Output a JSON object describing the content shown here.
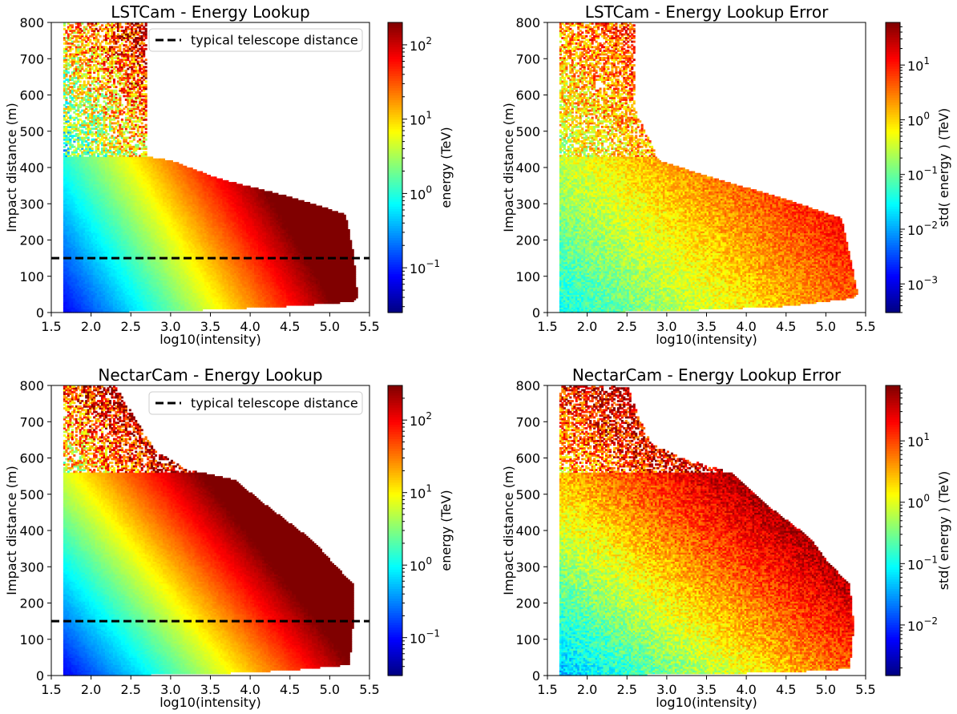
{
  "chart_data": [
    {
      "type": "heatmap",
      "title": "LSTCam - Energy Lookup",
      "xlabel": "log10(intensity)",
      "ylabel": "Impact distance (m)",
      "xlim": [
        1.5,
        5.5
      ],
      "ylim": [
        0,
        800
      ],
      "xticks": [
        "1.5",
        "2.0",
        "2.5",
        "3.0",
        "3.5",
        "4.0",
        "4.5",
        "5.0",
        "5.5"
      ],
      "yticks": [
        "0",
        "100",
        "200",
        "300",
        "400",
        "500",
        "600",
        "700",
        "800"
      ],
      "colorbar": {
        "label": "energy (TeV)",
        "scale": "log",
        "range": [
          0.025,
          200
        ],
        "ticks": [
          {
            "value": 0.1,
            "mantissa": "10",
            "exp": "−1"
          },
          {
            "value": 1,
            "mantissa": "10",
            "exp": "0"
          },
          {
            "value": 10,
            "mantissa": "10",
            "exp": "1"
          },
          {
            "value": 100,
            "mantissa": "10",
            "exp": "2"
          }
        ]
      },
      "reference_line": {
        "y": 150,
        "style": "dashed",
        "color": "#000000",
        "legend": "typical telescope distance"
      },
      "legend_location": "upper right",
      "model": {
        "kind": "energy",
        "base": -1.3,
        "slope_x": 1.0,
        "slope_d": 0.0027,
        "x_start": 1.65,
        "edge": [
          [
            1.65,
            800
          ],
          [
            2.7,
            800
          ],
          [
            2.7,
            430
          ],
          [
            3.0,
            420
          ],
          [
            3.6,
            370
          ],
          [
            4.4,
            325
          ],
          [
            4.8,
            300
          ],
          [
            5.2,
            270
          ],
          [
            5.3,
            160
          ],
          [
            5.35,
            40
          ],
          [
            5.3,
            30
          ],
          [
            4.5,
            18
          ],
          [
            3.5,
            8
          ],
          [
            2.0,
            0
          ],
          [
            1.65,
            0
          ]
        ],
        "low_stat_above": 430,
        "low_stat_mult": 0.12
      }
    },
    {
      "type": "heatmap",
      "title": "LSTCam - Energy Lookup Error",
      "xlabel": "log10(intensity)",
      "ylabel": "Impact distance (m)",
      "xlim": [
        1.5,
        5.5
      ],
      "ylim": [
        0,
        800
      ],
      "xticks": [
        "1.5",
        "2.0",
        "2.5",
        "3.0",
        "3.5",
        "4.0",
        "4.5",
        "5.0",
        "5.5"
      ],
      "yticks": [
        "0",
        "100",
        "200",
        "300",
        "400",
        "500",
        "600",
        "700",
        "800"
      ],
      "colorbar": {
        "label": "std( energy ) (TeV)",
        "scale": "log",
        "range": [
          0.0003,
          60
        ],
        "ticks": [
          {
            "value": 0.001,
            "mantissa": "10",
            "exp": "−3"
          },
          {
            "value": 0.01,
            "mantissa": "10",
            "exp": "−2"
          },
          {
            "value": 0.1,
            "mantissa": "10",
            "exp": "−1"
          },
          {
            "value": 1,
            "mantissa": "10",
            "exp": "0"
          },
          {
            "value": 10,
            "mantissa": "10",
            "exp": "1"
          }
        ]
      },
      "model": {
        "kind": "error",
        "base": -1.55,
        "slope_x": 0.55,
        "slope_d": 0.0023,
        "x_start": 1.65,
        "edge": [
          [
            1.65,
            800
          ],
          [
            2.6,
            800
          ],
          [
            2.6,
            560
          ],
          [
            2.9,
            420
          ],
          [
            3.6,
            370
          ],
          [
            4.4,
            320
          ],
          [
            4.8,
            290
          ],
          [
            5.2,
            260
          ],
          [
            5.3,
            160
          ],
          [
            5.4,
            50
          ],
          [
            5.35,
            40
          ],
          [
            4.5,
            18
          ],
          [
            3.5,
            8
          ],
          [
            2.0,
            0
          ],
          [
            1.65,
            0
          ]
        ],
        "low_stat_above": 430,
        "low_stat_mult": 0.1
      }
    },
    {
      "type": "heatmap",
      "title": "NectarCam - Energy Lookup",
      "xlabel": "log10(intensity)",
      "ylabel": "Impact distance (m)",
      "xlim": [
        1.5,
        5.5
      ],
      "ylim": [
        0,
        800
      ],
      "xticks": [
        "1.5",
        "2.0",
        "2.5",
        "3.0",
        "3.5",
        "4.0",
        "4.5",
        "5.0",
        "5.5"
      ],
      "yticks": [
        "0",
        "100",
        "200",
        "300",
        "400",
        "500",
        "600",
        "700",
        "800"
      ],
      "colorbar": {
        "label": "energy (TeV)",
        "scale": "log",
        "range": [
          0.03,
          300
        ],
        "ticks": [
          {
            "value": 0.1,
            "mantissa": "10",
            "exp": "−1"
          },
          {
            "value": 1,
            "mantissa": "10",
            "exp": "0"
          },
          {
            "value": 10,
            "mantissa": "10",
            "exp": "1"
          },
          {
            "value": 100,
            "mantissa": "10",
            "exp": "2"
          }
        ]
      },
      "reference_line": {
        "y": 150,
        "style": "dashed",
        "color": "#000000",
        "legend": "typical telescope distance"
      },
      "legend_location": "upper right",
      "model": {
        "kind": "energy",
        "base": -1.2,
        "slope_x": 0.95,
        "slope_d": 0.0034,
        "x_start": 1.65,
        "edge": [
          [
            1.65,
            800
          ],
          [
            2.3,
            800
          ],
          [
            2.8,
            620
          ],
          [
            3.2,
            570
          ],
          [
            3.8,
            540
          ],
          [
            4.2,
            470
          ],
          [
            4.8,
            370
          ],
          [
            5.0,
            320
          ],
          [
            5.3,
            250
          ],
          [
            5.3,
            160
          ],
          [
            5.25,
            30
          ],
          [
            5.0,
            25
          ],
          [
            4.5,
            15
          ],
          [
            3.5,
            5
          ],
          [
            2.0,
            0
          ],
          [
            1.65,
            0
          ]
        ],
        "low_stat_above": 560,
        "low_stat_mult": 0.12
      }
    },
    {
      "type": "heatmap",
      "title": "NectarCam - Energy Lookup Error",
      "xlabel": "log10(intensity)",
      "ylabel": "Impact distance (m)",
      "xlim": [
        1.5,
        5.5
      ],
      "ylim": [
        0,
        800
      ],
      "xticks": [
        "1.5",
        "2.0",
        "2.5",
        "3.0",
        "3.5",
        "4.0",
        "4.5",
        "5.0",
        "5.5"
      ],
      "yticks": [
        "0",
        "100",
        "200",
        "300",
        "400",
        "500",
        "600",
        "700",
        "800"
      ],
      "colorbar": {
        "label": "std( energy ) (TeV)",
        "scale": "log",
        "range": [
          0.0015,
          80
        ],
        "ticks": [
          {
            "value": 0.01,
            "mantissa": "10",
            "exp": "−2"
          },
          {
            "value": 0.1,
            "mantissa": "10",
            "exp": "−1"
          },
          {
            "value": 1,
            "mantissa": "10",
            "exp": "0"
          },
          {
            "value": 10,
            "mantissa": "10",
            "exp": "1"
          }
        ]
      },
      "model": {
        "kind": "error",
        "base": -1.45,
        "slope_x": 0.6,
        "slope_d": 0.0032,
        "x_start": 1.65,
        "edge": [
          [
            1.65,
            800
          ],
          [
            2.5,
            800
          ],
          [
            2.8,
            640
          ],
          [
            3.2,
            600
          ],
          [
            3.8,
            560
          ],
          [
            4.2,
            480
          ],
          [
            4.8,
            380
          ],
          [
            5.0,
            320
          ],
          [
            5.3,
            250
          ],
          [
            5.35,
            140
          ],
          [
            5.3,
            20
          ],
          [
            5.0,
            15
          ],
          [
            4.5,
            10
          ],
          [
            3.5,
            5
          ],
          [
            2.0,
            0
          ],
          [
            1.65,
            0
          ]
        ],
        "low_stat_above": 560,
        "low_stat_mult": 0.1
      }
    }
  ]
}
